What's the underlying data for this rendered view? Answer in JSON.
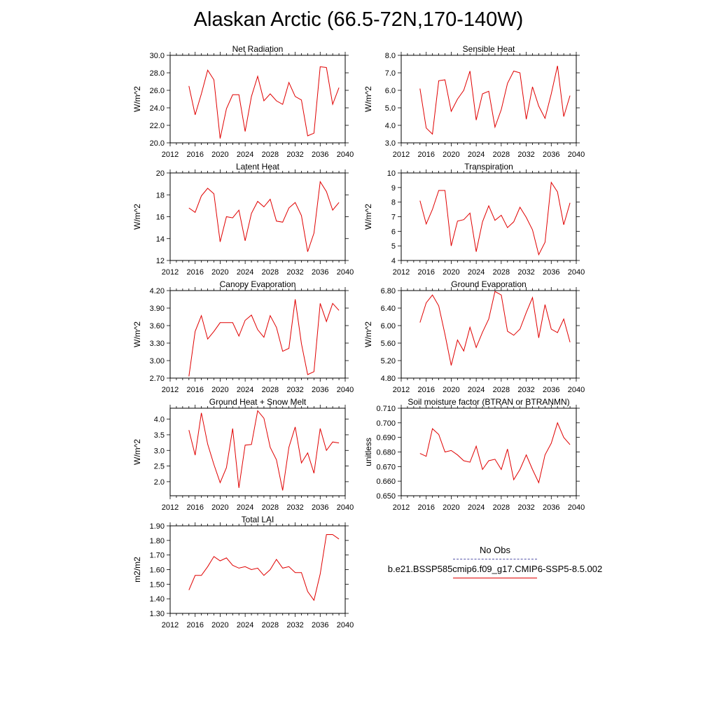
{
  "title": "Alaskan Arctic (66.5-72N,170-140W)",
  "legend": {
    "entries": [
      {
        "label": "No Obs",
        "style": "dashed",
        "color": "#5555aa"
      },
      {
        "label": "b.e21.BSSP585cmip6.f09_g17.CMIP6-SSP5-8.5.002",
        "style": "solid",
        "color": "#e00000"
      }
    ]
  },
  "line_color": "#e00000",
  "chart_data": [
    {
      "type": "line",
      "title": "Net Radiation",
      "ylabel": "W/m^2",
      "xlim": [
        2012,
        2040
      ],
      "xticks": [
        2012,
        2016,
        2020,
        2024,
        2028,
        2032,
        2036,
        2040
      ],
      "ylim": [
        20.0,
        30.0
      ],
      "yticks": [
        "20.0",
        "22.0",
        "24.0",
        "26.0",
        "28.0",
        "30.0"
      ],
      "x": [
        2015,
        2016,
        2017,
        2018,
        2019,
        2020,
        2021,
        2022,
        2023,
        2024,
        2025,
        2026,
        2027,
        2028,
        2029,
        2030,
        2031,
        2032,
        2033,
        2034,
        2035,
        2036,
        2037,
        2038,
        2039
      ],
      "series": [
        {
          "name": "b.e21.BSSP585cmip6.f09_g17.CMIP6-SSP5-8.5.002",
          "values": [
            26.5,
            23.2,
            25.6,
            28.3,
            27.2,
            20.5,
            23.9,
            25.5,
            25.5,
            21.3,
            25.3,
            27.6,
            24.8,
            25.6,
            24.8,
            24.4,
            26.9,
            25.3,
            24.9,
            20.8,
            21.1,
            28.7,
            28.6,
            24.4,
            26.3
          ]
        }
      ]
    },
    {
      "type": "line",
      "title": "Sensible Heat",
      "ylabel": "W/m^2",
      "xlim": [
        2012,
        2040
      ],
      "xticks": [
        2012,
        2016,
        2020,
        2024,
        2028,
        2032,
        2036,
        2040
      ],
      "ylim": [
        3.0,
        8.0
      ],
      "yticks": [
        "3.0",
        "4.0",
        "5.0",
        "6.0",
        "7.0",
        "8.0"
      ],
      "x": [
        2015,
        2016,
        2017,
        2018,
        2019,
        2020,
        2021,
        2022,
        2023,
        2024,
        2025,
        2026,
        2027,
        2028,
        2029,
        2030,
        2031,
        2032,
        2033,
        2034,
        2035,
        2036,
        2037,
        2038,
        2039
      ],
      "series": [
        {
          "name": "b.e21.BSSP585cmip6.f09_g17.CMIP6-SSP5-8.5.002",
          "values": [
            6.1,
            3.85,
            3.5,
            6.55,
            6.6,
            4.8,
            5.5,
            6.0,
            7.1,
            4.3,
            5.8,
            5.95,
            3.9,
            4.9,
            6.4,
            7.1,
            7.0,
            4.35,
            6.2,
            5.1,
            4.4,
            5.8,
            7.4,
            4.5,
            5.7
          ]
        }
      ]
    },
    {
      "type": "line",
      "title": "Latent Heat",
      "ylabel": "W/m^2",
      "xlim": [
        2012,
        2040
      ],
      "xticks": [
        2012,
        2016,
        2020,
        2024,
        2028,
        2032,
        2036,
        2040
      ],
      "ylim": [
        12,
        20
      ],
      "yticks": [
        "12",
        "14",
        "16",
        "18",
        "20"
      ],
      "x": [
        2015,
        2016,
        2017,
        2018,
        2019,
        2020,
        2021,
        2022,
        2023,
        2024,
        2025,
        2026,
        2027,
        2028,
        2029,
        2030,
        2031,
        2032,
        2033,
        2034,
        2035,
        2036,
        2037,
        2038,
        2039
      ],
      "series": [
        {
          "name": "b.e21.BSSP585cmip6.f09_g17.CMIP6-SSP5-8.5.002",
          "values": [
            16.8,
            16.4,
            17.9,
            18.6,
            18.1,
            13.7,
            16.0,
            15.9,
            16.6,
            13.8,
            16.3,
            17.4,
            16.9,
            17.6,
            15.6,
            15.5,
            16.8,
            17.3,
            16.1,
            12.8,
            14.5,
            19.2,
            18.3,
            16.6,
            17.3
          ]
        }
      ]
    },
    {
      "type": "line",
      "title": "Transpiration",
      "ylabel": "W/m^2",
      "xlim": [
        2012,
        2040
      ],
      "xticks": [
        2012,
        2016,
        2020,
        2024,
        2028,
        2032,
        2036,
        2040
      ],
      "ylim": [
        4,
        10
      ],
      "yticks": [
        "4",
        "5",
        "6",
        "7",
        "8",
        "9",
        "10"
      ],
      "x": [
        2015,
        2016,
        2017,
        2018,
        2019,
        2020,
        2021,
        2022,
        2023,
        2024,
        2025,
        2026,
        2027,
        2028,
        2029,
        2030,
        2031,
        2032,
        2033,
        2034,
        2035,
        2036,
        2037,
        2038,
        2039
      ],
      "series": [
        {
          "name": "b.e21.BSSP585cmip6.f09_g17.CMIP6-SSP5-8.5.002",
          "values": [
            8.1,
            6.5,
            7.5,
            8.8,
            8.8,
            5.0,
            6.7,
            6.8,
            7.25,
            4.6,
            6.65,
            7.75,
            6.75,
            7.1,
            6.25,
            6.65,
            7.65,
            6.95,
            6.1,
            4.4,
            5.25,
            9.35,
            8.7,
            6.45,
            7.95
          ]
        }
      ]
    },
    {
      "type": "line",
      "title": "Canopy Evaporation",
      "ylabel": "W/m^2",
      "xlim": [
        2012,
        2040
      ],
      "xticks": [
        2012,
        2016,
        2020,
        2024,
        2028,
        2032,
        2036,
        2040
      ],
      "ylim": [
        2.7,
        4.2
      ],
      "yticks": [
        "2.70",
        "3.00",
        "3.30",
        "3.60",
        "3.90",
        "4.20"
      ],
      "x": [
        2015,
        2016,
        2017,
        2018,
        2019,
        2020,
        2021,
        2022,
        2023,
        2024,
        2025,
        2026,
        2027,
        2028,
        2029,
        2030,
        2031,
        2032,
        2033,
        2034,
        2035,
        2036,
        2037,
        2038,
        2039
      ],
      "series": [
        {
          "name": "b.e21.BSSP585cmip6.f09_g17.CMIP6-SSP5-8.5.002",
          "values": [
            2.73,
            3.5,
            3.77,
            3.37,
            3.5,
            3.65,
            3.65,
            3.65,
            3.42,
            3.69,
            3.78,
            3.53,
            3.4,
            3.77,
            3.57,
            3.16,
            3.21,
            4.05,
            3.29,
            2.76,
            2.81,
            3.98,
            3.67,
            3.98,
            3.86
          ]
        }
      ]
    },
    {
      "type": "line",
      "title": "Ground Evaporation",
      "ylabel": "W/m^2",
      "xlim": [
        2012,
        2040
      ],
      "xticks": [
        2012,
        2016,
        2020,
        2024,
        2028,
        2032,
        2036,
        2040
      ],
      "ylim": [
        4.8,
        6.8
      ],
      "yticks": [
        "4.80",
        "5.20",
        "5.60",
        "6.00",
        "6.40",
        "6.80"
      ],
      "x": [
        2015,
        2016,
        2017,
        2018,
        2019,
        2020,
        2021,
        2022,
        2023,
        2024,
        2025,
        2026,
        2027,
        2028,
        2029,
        2030,
        2031,
        2032,
        2033,
        2034,
        2035,
        2036,
        2037,
        2038,
        2039
      ],
      "series": [
        {
          "name": "b.e21.BSSP585cmip6.f09_g17.CMIP6-SSP5-8.5.002",
          "values": [
            6.07,
            6.52,
            6.7,
            6.45,
            5.8,
            5.09,
            5.67,
            5.42,
            5.96,
            5.5,
            5.85,
            6.15,
            6.78,
            6.7,
            5.87,
            5.78,
            5.92,
            6.3,
            6.64,
            5.72,
            6.48,
            5.92,
            5.84,
            6.15,
            5.62
          ]
        }
      ]
    },
    {
      "type": "line",
      "title": "Ground Heat + Snow Melt",
      "ylabel": "W/m^2",
      "xlim": [
        2012,
        2040
      ],
      "xticks": [
        2012,
        2016,
        2020,
        2024,
        2028,
        2032,
        2036,
        2040
      ],
      "ylim": [
        1.55,
        4.35
      ],
      "yticks": [
        "2.0",
        "2.5",
        "3.0",
        "3.5",
        "4.0"
      ],
      "x": [
        2015,
        2016,
        2017,
        2018,
        2019,
        2020,
        2021,
        2022,
        2023,
        2024,
        2025,
        2026,
        2027,
        2028,
        2029,
        2030,
        2031,
        2032,
        2033,
        2034,
        2035,
        2036,
        2037,
        2038,
        2039
      ],
      "series": [
        {
          "name": "b.e21.BSSP585cmip6.f09_g17.CMIP6-SSP5-8.5.002",
          "values": [
            3.65,
            2.85,
            4.2,
            3.2,
            2.55,
            1.97,
            2.45,
            3.7,
            1.8,
            3.17,
            3.19,
            4.27,
            4.03,
            3.1,
            2.7,
            1.72,
            3.1,
            3.75,
            2.6,
            2.92,
            2.27,
            3.7,
            3.0,
            3.27,
            3.24
          ]
        }
      ]
    },
    {
      "type": "line",
      "title": "Soil moisture factor (BTRAN or BTRANMN)",
      "ylabel": "unitless",
      "xlim": [
        2012,
        2040
      ],
      "xticks": [
        2012,
        2016,
        2020,
        2024,
        2028,
        2032,
        2036,
        2040
      ],
      "ylim": [
        0.65,
        0.71
      ],
      "yticks": [
        "0.650",
        "0.660",
        "0.670",
        "0.680",
        "0.690",
        "0.700",
        "0.710"
      ],
      "x": [
        2015,
        2016,
        2017,
        2018,
        2019,
        2020,
        2021,
        2022,
        2023,
        2024,
        2025,
        2026,
        2027,
        2028,
        2029,
        2030,
        2031,
        2032,
        2033,
        2034,
        2035,
        2036,
        2037,
        2038,
        2039
      ],
      "series": [
        {
          "name": "b.e21.BSSP585cmip6.f09_g17.CMIP6-SSP5-8.5.002",
          "values": [
            0.679,
            0.677,
            0.696,
            0.692,
            0.68,
            0.681,
            0.678,
            0.674,
            0.673,
            0.684,
            0.668,
            0.674,
            0.675,
            0.668,
            0.682,
            0.661,
            0.668,
            0.678,
            0.668,
            0.659,
            0.678,
            0.686,
            0.7,
            0.69,
            0.685
          ]
        }
      ]
    },
    {
      "type": "line",
      "title": "Total LAI",
      "ylabel": "m2/m2",
      "xlim": [
        2012,
        2040
      ],
      "xticks": [
        2012,
        2016,
        2020,
        2024,
        2028,
        2032,
        2036,
        2040
      ],
      "ylim": [
        1.3,
        1.9
      ],
      "yticks": [
        "1.30",
        "1.40",
        "1.50",
        "1.60",
        "1.70",
        "1.80",
        "1.90"
      ],
      "x": [
        2015,
        2016,
        2017,
        2018,
        2019,
        2020,
        2021,
        2022,
        2023,
        2024,
        2025,
        2026,
        2027,
        2028,
        2029,
        2030,
        2031,
        2032,
        2033,
        2034,
        2035,
        2036,
        2037,
        2038,
        2039
      ],
      "series": [
        {
          "name": "b.e21.BSSP585cmip6.f09_g17.CMIP6-SSP5-8.5.002",
          "values": [
            1.46,
            1.56,
            1.56,
            1.62,
            1.69,
            1.66,
            1.68,
            1.63,
            1.61,
            1.62,
            1.6,
            1.61,
            1.56,
            1.6,
            1.67,
            1.61,
            1.62,
            1.58,
            1.58,
            1.45,
            1.39,
            1.57,
            1.84,
            1.84,
            1.81
          ]
        }
      ]
    }
  ]
}
